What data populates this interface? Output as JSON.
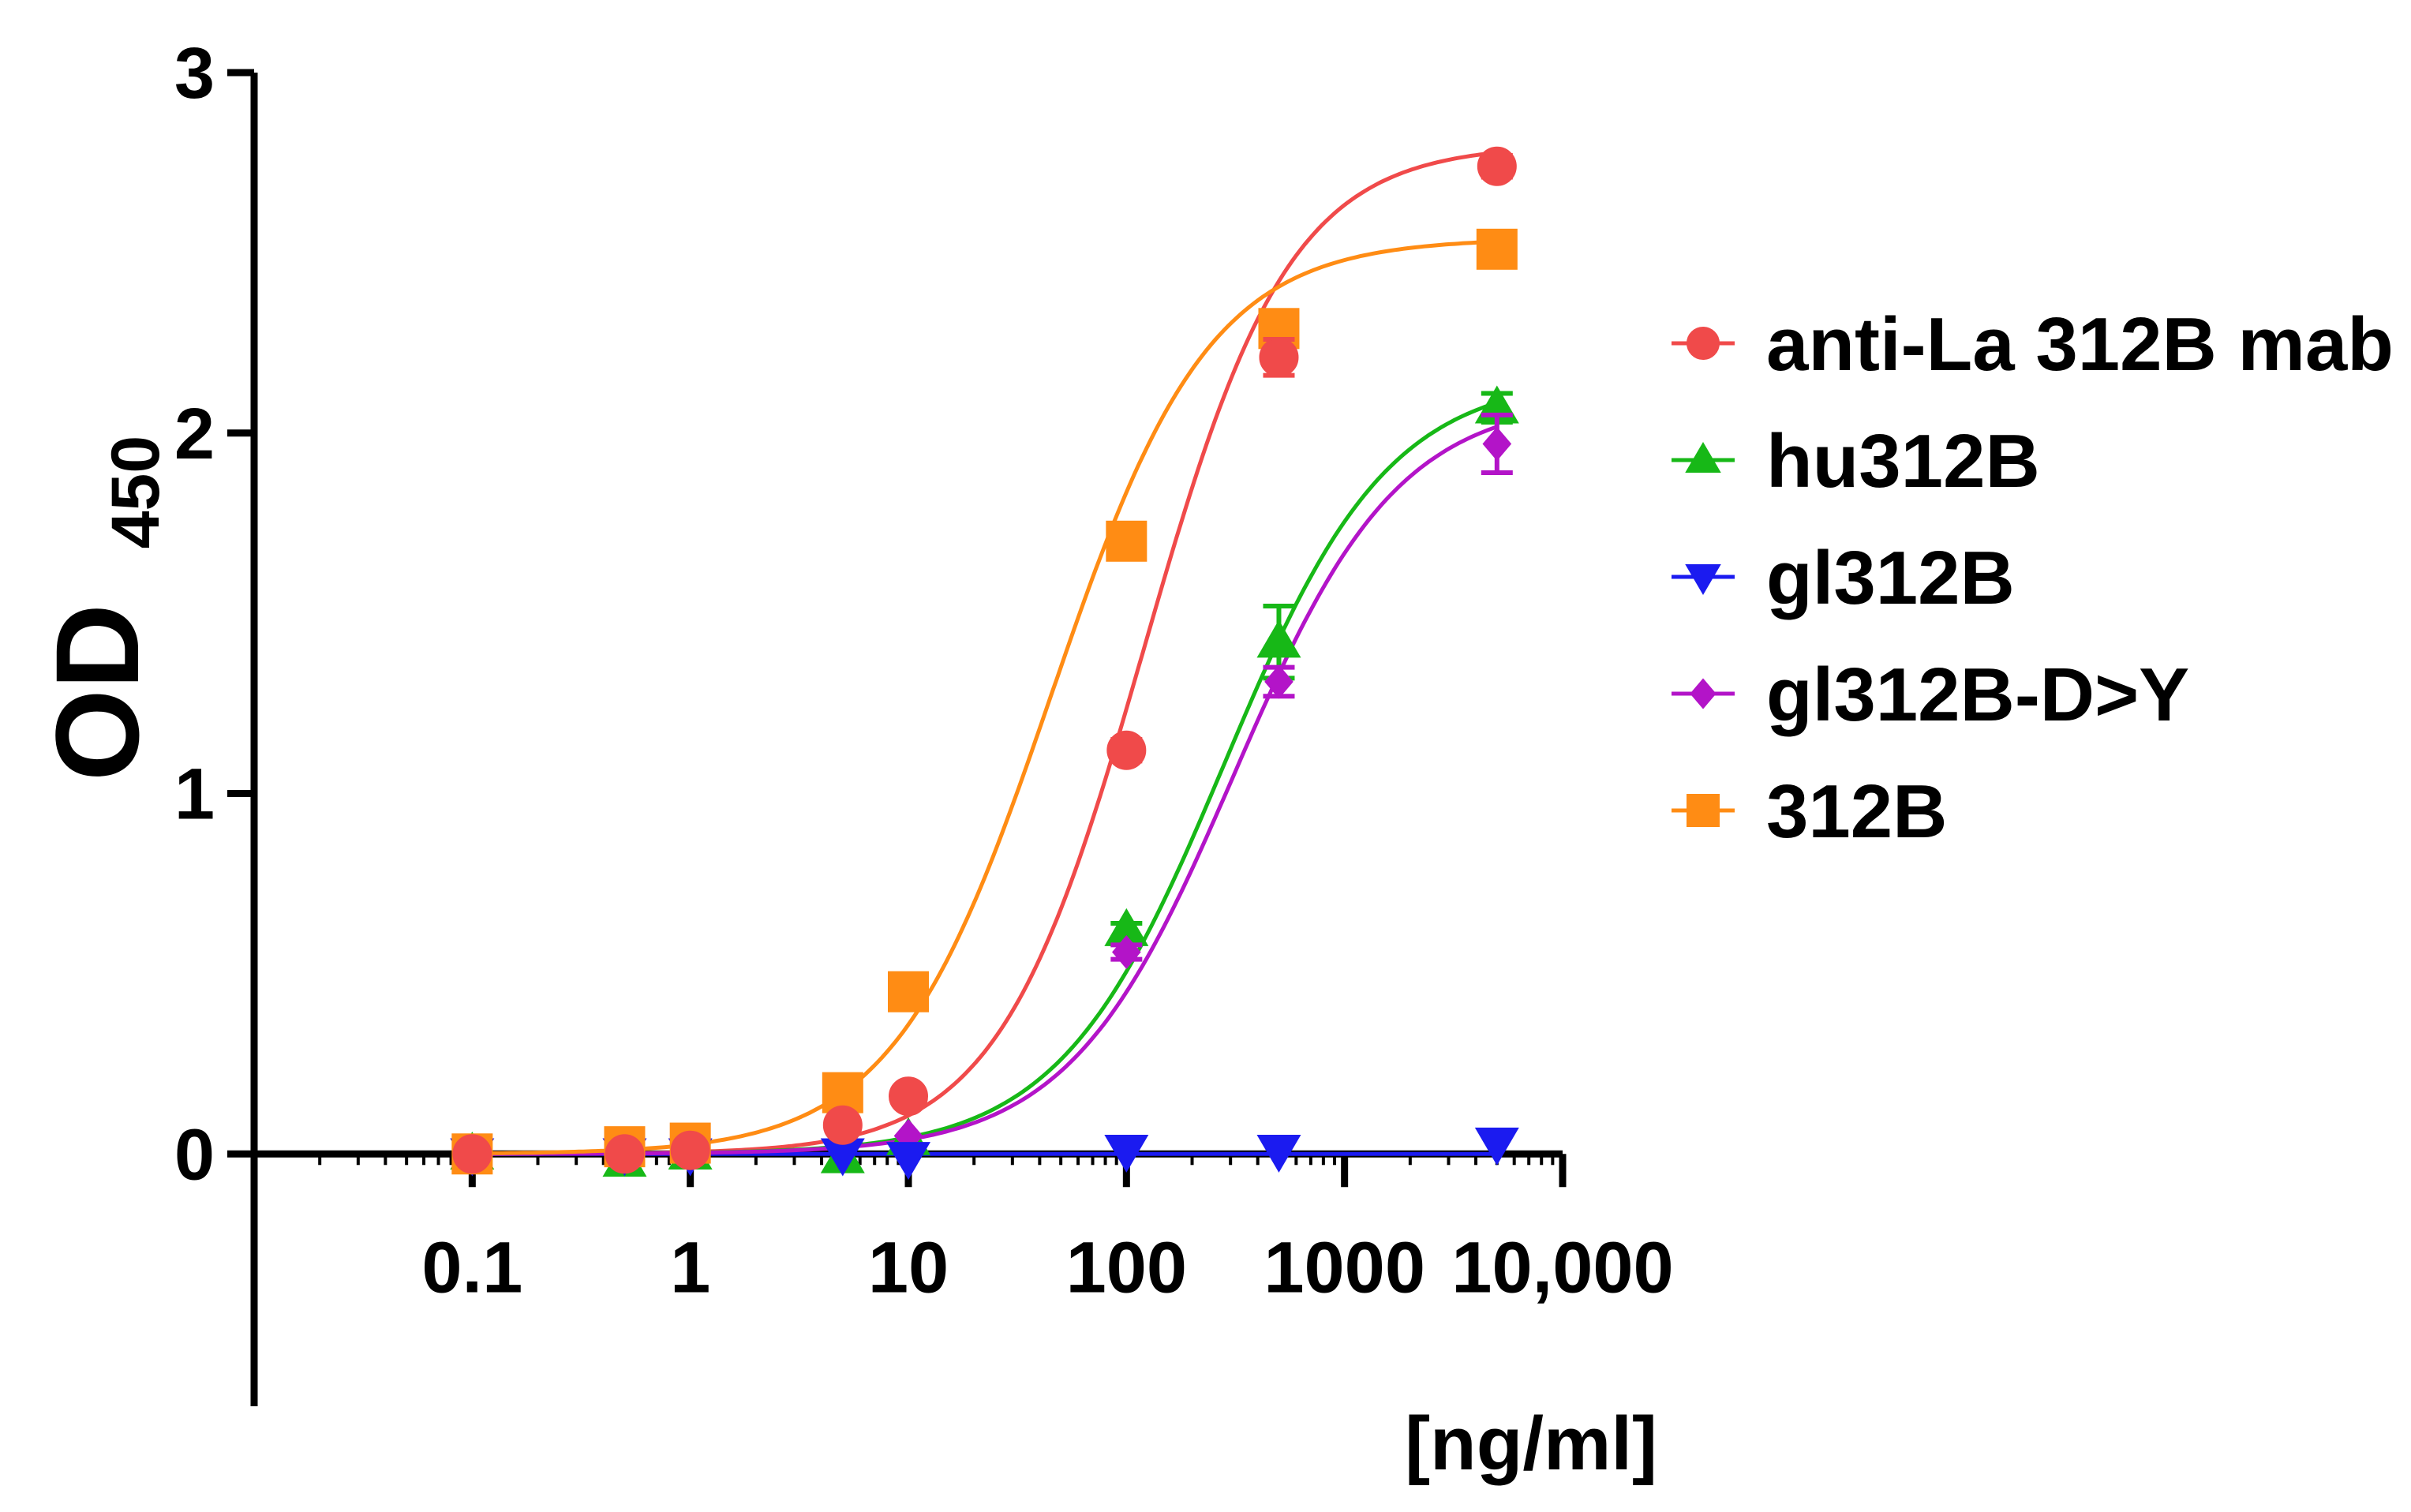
{
  "chart_data": {
    "type": "line",
    "title": "",
    "ylabel": "OD",
    "ylabel_subscript": "450",
    "xlabel": "[ng/ml]",
    "x_scale": "log",
    "xlim": [
      0.01,
      10000
    ],
    "ylim": [
      -0.7,
      3
    ],
    "y_ticks": [
      0,
      1,
      2,
      3
    ],
    "y_tick_labels": [
      "0",
      "1",
      "2",
      "3"
    ],
    "x_ticks": [
      0.1,
      1,
      10,
      100,
      1000,
      10000
    ],
    "x_tick_labels": [
      "0.1",
      "1",
      "10",
      "100",
      "1000",
      "10,000"
    ],
    "legend_position": "right",
    "x": [
      0.1,
      0.5,
      1,
      5,
      10,
      100,
      500,
      5000
    ],
    "series": [
      {
        "name": "anti-La 312B mab",
        "marker": "circle",
        "color": "#f04a4a",
        "values": [
          0.0,
          0.0,
          0.01,
          0.08,
          0.16,
          1.12,
          2.21,
          2.74
        ],
        "errors": [
          0,
          0,
          0,
          0,
          0,
          0.03,
          0.05,
          0.03
        ],
        "fit": {
          "bottom": 0.0,
          "top": 2.8,
          "ec50": 120,
          "hill": 1.3
        }
      },
      {
        "name": "hu312B",
        "marker": "triangle-up",
        "color": "#17b817",
        "values": [
          0.0,
          -0.02,
          0.0,
          -0.01,
          0.04,
          0.62,
          1.42,
          2.07
        ],
        "errors": [
          0,
          0,
          0,
          0,
          0,
          0.02,
          0.1,
          0.04
        ],
        "fit": {
          "bottom": 0.0,
          "top": 2.16,
          "ec50": 280,
          "hill": 1.15
        }
      },
      {
        "name": "gl312B",
        "marker": "triangle-down",
        "color": "#1b1bf0",
        "values": [
          0.0,
          0.0,
          0.0,
          0.0,
          -0.01,
          0.01,
          0.01,
          0.03
        ],
        "errors": [
          0,
          0,
          0,
          0,
          0,
          0,
          0,
          0
        ],
        "fit": {
          "bottom": 0.0,
          "top": 0.0,
          "ec50": 100,
          "hill": 1.0
        }
      },
      {
        "name": "gl312B-D>Y",
        "marker": "diamond",
        "color": "#b314c8",
        "values": [
          0.0,
          0.0,
          0.0,
          0.01,
          0.05,
          0.56,
          1.31,
          1.97
        ],
        "errors": [
          0,
          0,
          0,
          0,
          0,
          0.02,
          0.04,
          0.08
        ],
        "fit": {
          "bottom": 0.0,
          "top": 2.1,
          "ec50": 310,
          "hill": 1.15
        }
      },
      {
        "name": "312B",
        "marker": "square",
        "color": "#ff8c14",
        "values": [
          0.0,
          0.02,
          0.03,
          0.17,
          0.45,
          1.7,
          2.29,
          2.51
        ],
        "errors": [
          0,
          0,
          0,
          0,
          0,
          0,
          0.02,
          0.03
        ],
        "fit": {
          "bottom": 0.0,
          "top": 2.54,
          "ec50": 45,
          "hill": 1.2
        }
      }
    ]
  }
}
